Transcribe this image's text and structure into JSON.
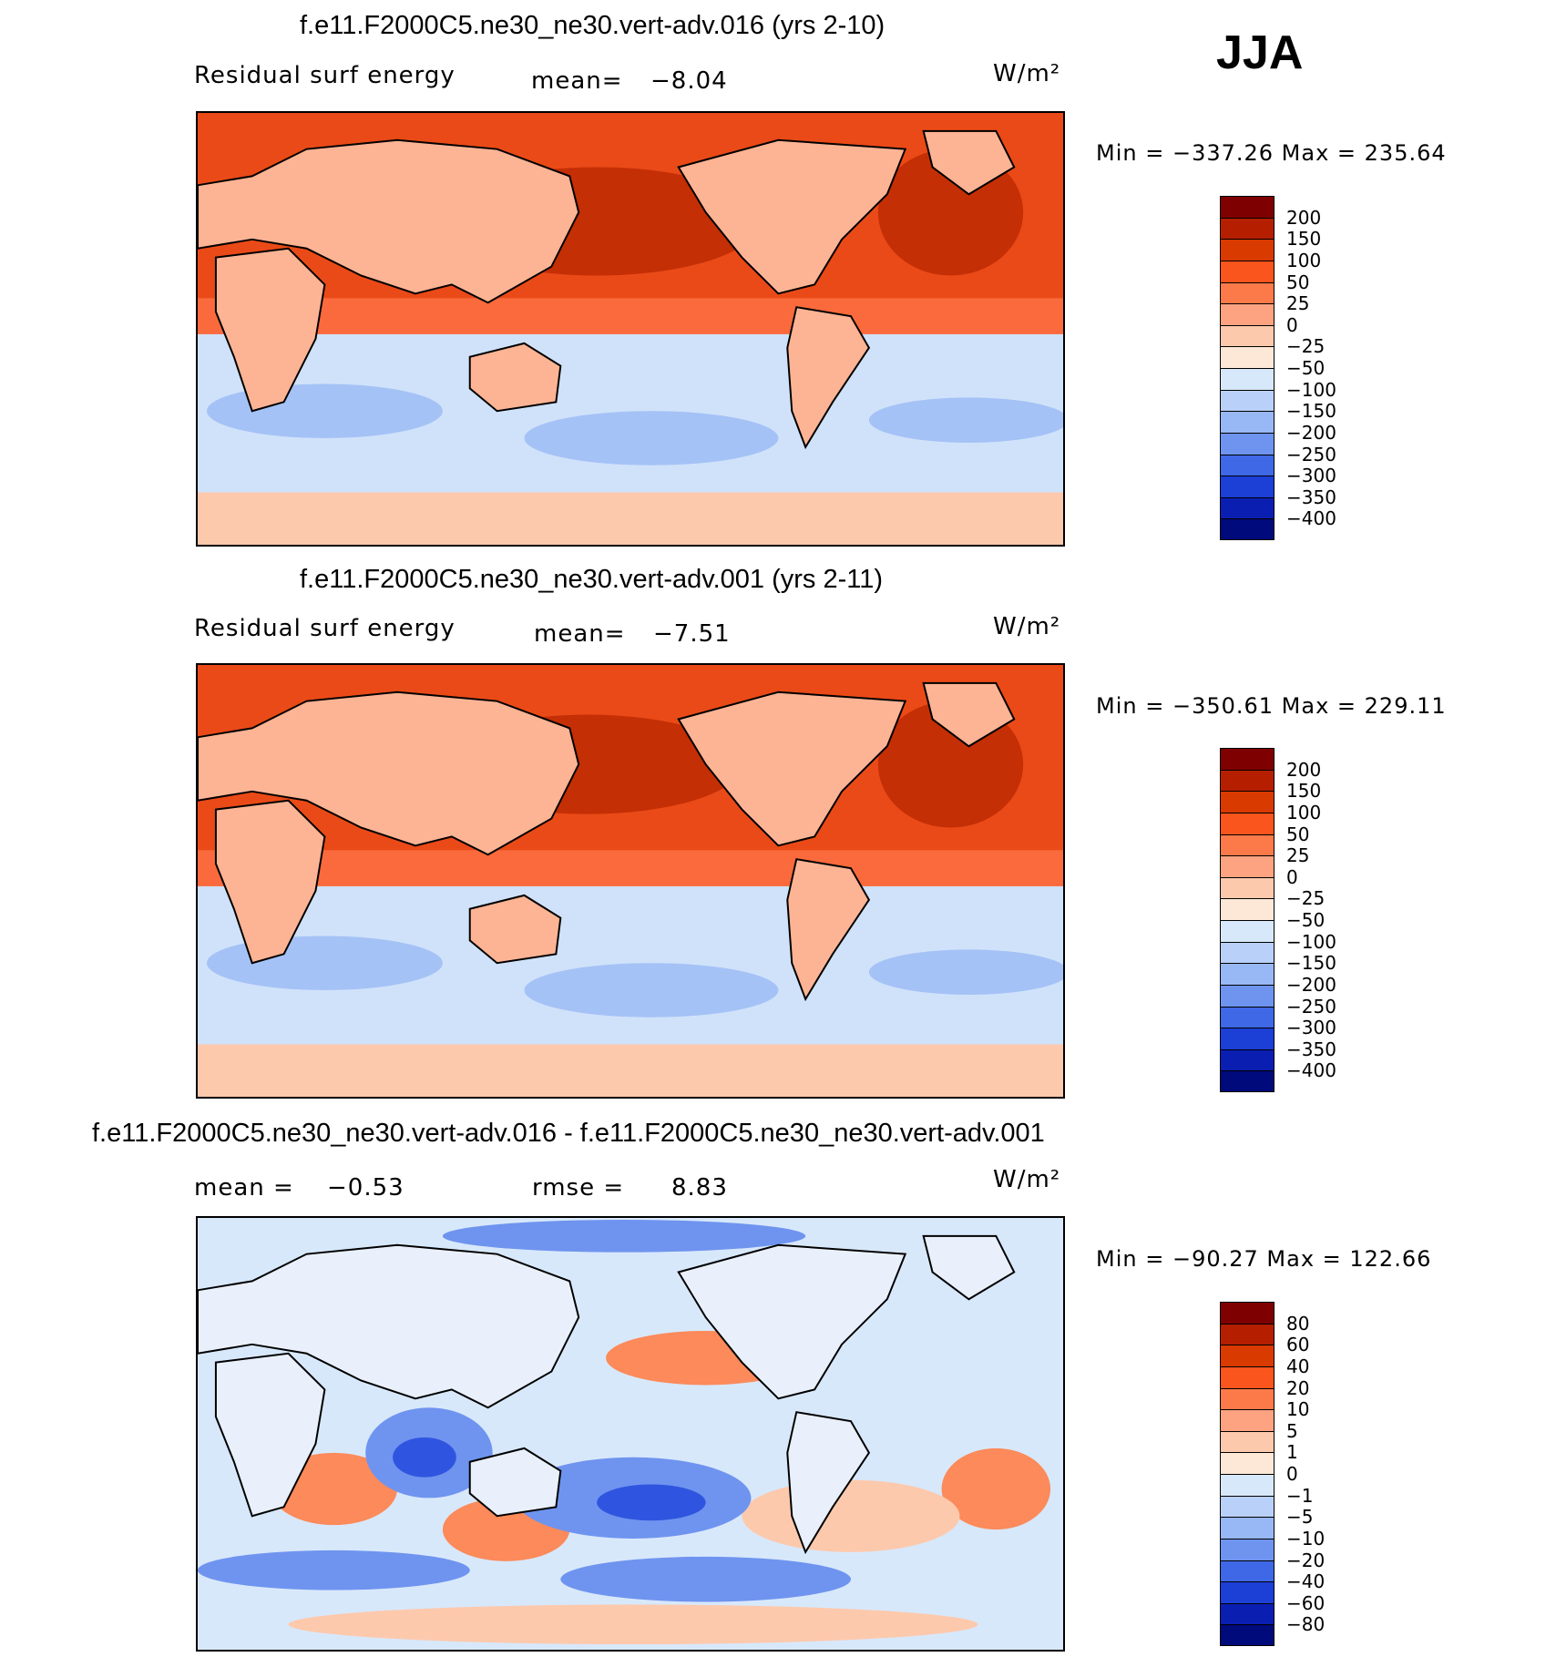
{
  "season": "JJA",
  "chart_data": [
    {
      "type": "heatmap",
      "title": "f.e11.F2000C5.ne30_ne30.vert-adv.016 (yrs 2-10)",
      "variable": "Residual surf energy",
      "mean_label": "mean=",
      "mean_value": "−8.04",
      "units": "W/m²",
      "min_text": "Min = −337.26 Max = 235.64",
      "min": -337.26,
      "max": 235.64,
      "colorbar": {
        "levels": [
          "200",
          "150",
          "100",
          "50",
          "25",
          "0",
          "−25",
          "−50",
          "−100",
          "−150",
          "−200",
          "−250",
          "−300",
          "−350",
          "−400"
        ],
        "colors": [
          "#7f0000",
          "#b51f00",
          "#d93a00",
          "#fa551c",
          "#fc7a4a",
          "#fda381",
          "#fdc9ad",
          "#fde8d8",
          "#d8e8fb",
          "#b9d0f8",
          "#98b7f5",
          "#6f94ef",
          "#3e68e6",
          "#1c3fd6",
          "#0a1fb2",
          "#000a7a"
        ]
      },
      "map": {
        "ocean_nh": "#ea4a17",
        "ocean_nh_high": "#c42f06",
        "tropics": "#fa6a3c",
        "ocean_sh": "#d0e2fa",
        "ocean_sh_low": "#a5c2f6",
        "land": "#fdb494",
        "ice": "#fdc9ad"
      }
    },
    {
      "type": "heatmap",
      "title": "f.e11.F2000C5.ne30_ne30.vert-adv.001 (yrs 2-11)",
      "variable": "Residual surf energy",
      "mean_label": "mean=",
      "mean_value": "−7.51",
      "units": "W/m²",
      "min_text": "Min = −350.61 Max = 229.11",
      "min": -350.61,
      "max": 229.11,
      "colorbar": {
        "levels": [
          "200",
          "150",
          "100",
          "50",
          "25",
          "0",
          "−25",
          "−50",
          "−100",
          "−150",
          "−200",
          "−250",
          "−300",
          "−350",
          "−400"
        ],
        "colors": [
          "#7f0000",
          "#b51f00",
          "#d93a00",
          "#fa551c",
          "#fc7a4a",
          "#fda381",
          "#fdc9ad",
          "#fde8d8",
          "#d8e8fb",
          "#b9d0f8",
          "#98b7f5",
          "#6f94ef",
          "#3e68e6",
          "#1c3fd6",
          "#0a1fb2",
          "#000a7a"
        ]
      },
      "map": {
        "ocean_nh": "#ea4a17",
        "ocean_nh_high": "#c42f06",
        "tropics": "#fa6a3c",
        "ocean_sh": "#d0e2fa",
        "ocean_sh_low": "#a5c2f6",
        "land": "#fdb494",
        "ice": "#fdc9ad"
      }
    },
    {
      "type": "heatmap",
      "title": "f.e11.F2000C5.ne30_ne30.vert-adv.016 - f.e11.F2000C5.ne30_ne30.vert-adv.001",
      "mean_label": "mean =",
      "mean_value": "−0.53",
      "rmse_label": "rmse =",
      "rmse_value": "8.83",
      "units": "W/m²",
      "min_text": "Min = −90.27 Max = 122.66",
      "min": -90.27,
      "max": 122.66,
      "colorbar": {
        "levels": [
          "80",
          "60",
          "40",
          "20",
          "10",
          "5",
          "1",
          "0",
          "−1",
          "−5",
          "−10",
          "−20",
          "−40",
          "−60",
          "−80"
        ],
        "colors": [
          "#7f0000",
          "#b51f00",
          "#d93a00",
          "#fa551c",
          "#fc7a4a",
          "#fda381",
          "#fdc9ad",
          "#fde8d8",
          "#d8e8fb",
          "#b9d0f8",
          "#98b7f5",
          "#6f94ef",
          "#3e68e6",
          "#1c3fd6",
          "#0a1fb2",
          "#000a7a"
        ]
      },
      "map": {
        "background": "#d8e8fb",
        "warm": "#fc8a5a",
        "warm_light": "#fdc9ad",
        "cool": "#6f94ef",
        "cool_dark": "#2f55e0",
        "land": "#e9f0fb"
      }
    }
  ]
}
